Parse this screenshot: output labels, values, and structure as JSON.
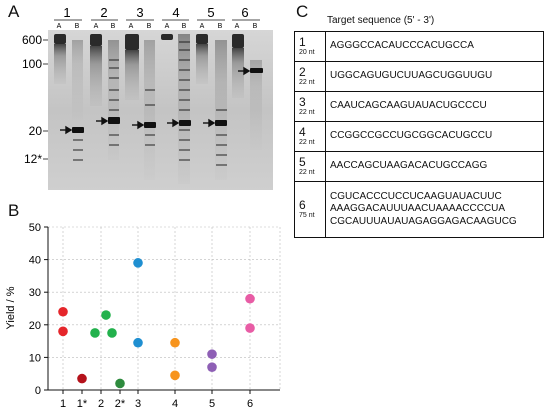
{
  "panels": {
    "a": "A",
    "b": "B",
    "c": "C"
  },
  "gel": {
    "lane_numbers": [
      "1",
      "2",
      "3",
      "4",
      "5",
      "6"
    ],
    "sub_lanes": [
      "A",
      "B"
    ],
    "size_markers": [
      "600",
      "100",
      "20",
      "12*"
    ]
  },
  "yield_chart": {
    "ylabel": "Yield / %",
    "yticks": [
      "0",
      "10",
      "20",
      "30",
      "40",
      "50"
    ],
    "xticks": [
      "1",
      "1*",
      "2",
      "2*",
      "3",
      "4",
      "5",
      "6"
    ]
  },
  "chart_data": {
    "type": "scatter",
    "xlabel": "",
    "ylabel": "Yield / %",
    "ylim": [
      0,
      50
    ],
    "grid": true,
    "categories": [
      "1",
      "1*",
      "2",
      "2*",
      "3",
      "4",
      "5",
      "6"
    ],
    "points": [
      {
        "x": "1",
        "y": 24,
        "color": "#e5262b"
      },
      {
        "x": "1",
        "y": 18,
        "color": "#e5262b"
      },
      {
        "x": "1*",
        "y": 3.5,
        "color": "#b5121b"
      },
      {
        "x": "2",
        "y": 17.5,
        "color": "#22b14c"
      },
      {
        "x": "2",
        "y": 23,
        "color": "#22b14c"
      },
      {
        "x": "2",
        "y": 17.5,
        "color": "#22b14c"
      },
      {
        "x": "2*",
        "y": 2,
        "color": "#2e8b3e"
      },
      {
        "x": "3",
        "y": 39,
        "color": "#1f8fd1"
      },
      {
        "x": "3",
        "y": 14.5,
        "color": "#1f8fd1"
      },
      {
        "x": "4",
        "y": 14.5,
        "color": "#f7941d"
      },
      {
        "x": "4",
        "y": 4.5,
        "color": "#f7941d"
      },
      {
        "x": "5",
        "y": 11,
        "color": "#8e5fb5"
      },
      {
        "x": "5",
        "y": 7,
        "color": "#8e5fb5"
      },
      {
        "x": "6",
        "y": 28,
        "color": "#e85ca5"
      },
      {
        "x": "6",
        "y": 19,
        "color": "#e85ca5"
      }
    ]
  },
  "table": {
    "title": "Target sequence (5' - 3')",
    "rows": [
      {
        "num": "1",
        "len": "20 nt",
        "lines": [
          "AGGGCCACAUCCCACUGCCA"
        ]
      },
      {
        "num": "2",
        "len": "22 nt",
        "lines": [
          "UGGCAGUGUCUUAGCUGGUUGU"
        ]
      },
      {
        "num": "3",
        "len": "22 nt",
        "lines": [
          "CAAUCAGCAAGUAUACUGCCCU"
        ]
      },
      {
        "num": "4",
        "len": "22 nt",
        "lines": [
          "CCGGCCGCCUGCGGCACUGCCU"
        ]
      },
      {
        "num": "5",
        "len": "22 nt",
        "lines": [
          "AACCAGCUAAGACACUGCCAGG"
        ]
      },
      {
        "num": "6",
        "len": "75 nt",
        "lines": [
          "CGUCACCCUCCUCAAGUAUACUUC",
          "AAAGGACAUUUAACUAAAACCCCUA",
          "CGCAUUUAUAUAGAGGAGACAAGUCG"
        ]
      }
    ]
  }
}
